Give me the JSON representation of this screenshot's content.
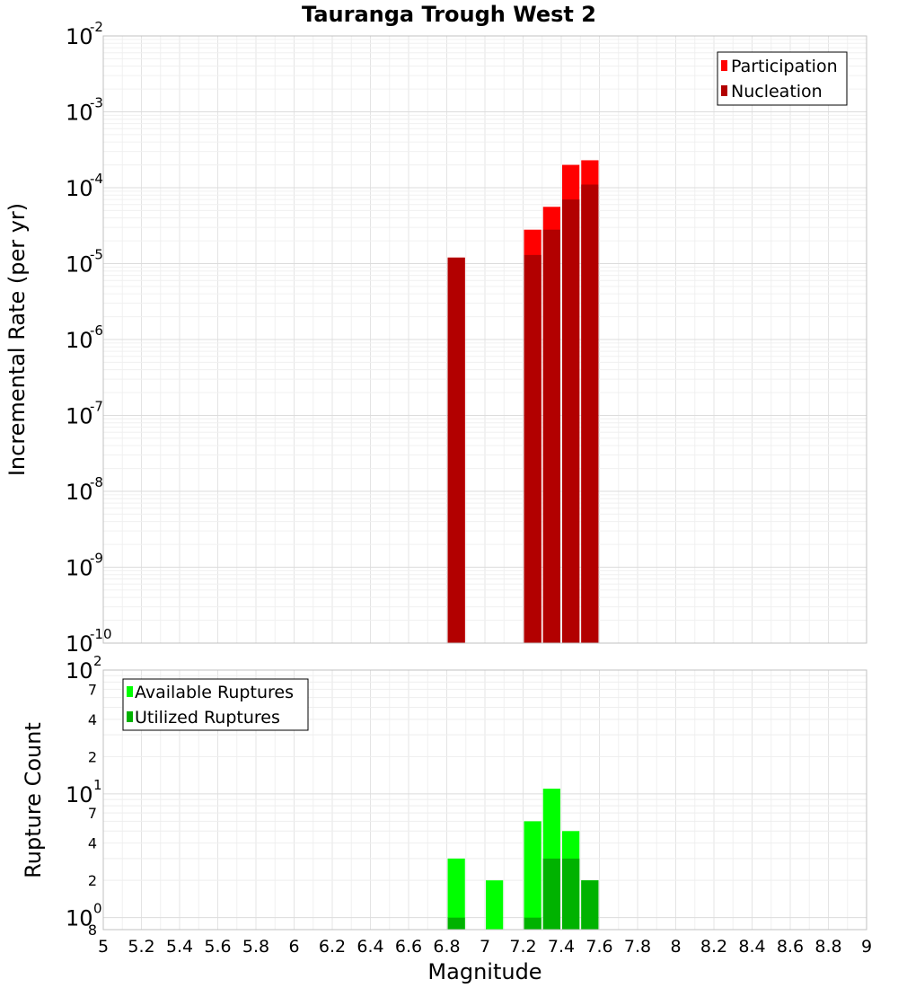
{
  "chart_data": [
    {
      "type": "bar",
      "title": "Tauranga Trough West 2",
      "xlabel": "",
      "ylabel": "Incremental Rate (per yr)",
      "xlim": [
        5,
        9
      ],
      "ylim": [
        1e-10,
        0.01
      ],
      "yscale": "log",
      "grid": true,
      "legend_position": "top-right",
      "y_ticks": [
        "-10",
        "-9",
        "-8",
        "-7",
        "-6",
        "-5",
        "-4",
        "-3",
        "-2"
      ],
      "bin_width": 0.1,
      "series": [
        {
          "name": "Participation",
          "color": "#ff0000",
          "x": [
            6.85,
            7.25,
            7.35,
            7.45,
            7.55
          ],
          "values": [
            1.2e-05,
            2.8e-05,
            5.6e-05,
            0.0002,
            0.00023
          ]
        },
        {
          "name": "Nucleation",
          "color": "#b20000",
          "x": [
            6.85,
            7.25,
            7.35,
            7.45,
            7.55
          ],
          "values": [
            1.2e-05,
            1.3e-05,
            2.8e-05,
            7e-05,
            0.00011
          ]
        }
      ]
    },
    {
      "type": "bar",
      "title": "",
      "xlabel": "Magnitude",
      "ylabel": "Rupture Count",
      "xlim": [
        5,
        9
      ],
      "ylim": [
        0.8,
        100
      ],
      "yscale": "log",
      "grid": true,
      "legend_position": "top-left",
      "x_ticks": [
        "5",
        "5.2",
        "5.4",
        "5.6",
        "5.8",
        "6",
        "6.2",
        "6.4",
        "6.6",
        "6.8",
        "7",
        "7.2",
        "7.4",
        "7.6",
        "7.8",
        "8",
        "8.2",
        "8.4",
        "8.6",
        "8.8",
        "9"
      ],
      "y_minor_ticks": [
        {
          "label": "8",
          "value": 0.8
        },
        {
          "label": "2",
          "value": 2
        },
        {
          "label": "4",
          "value": 4
        },
        {
          "label": "7",
          "value": 7
        },
        {
          "label": "2",
          "value": 20
        },
        {
          "label": "4",
          "value": 40
        },
        {
          "label": "7",
          "value": 70
        }
      ],
      "y_major_ticks": [
        {
          "exp": "0",
          "value": 1
        },
        {
          "exp": "1",
          "value": 10
        },
        {
          "exp": "2",
          "value": 100
        }
      ],
      "bin_width": 0.1,
      "series": [
        {
          "name": "Available Ruptures",
          "color": "#00ff00",
          "x": [
            6.85,
            7.05,
            7.25,
            7.35,
            7.45,
            7.55
          ],
          "values": [
            3,
            2,
            6,
            11,
            5,
            2
          ]
        },
        {
          "name": "Utilized Ruptures",
          "color": "#00b200",
          "x": [
            6.85,
            7.25,
            7.35,
            7.45,
            7.55
          ],
          "values": [
            1,
            1,
            3,
            3,
            2
          ]
        }
      ]
    }
  ]
}
